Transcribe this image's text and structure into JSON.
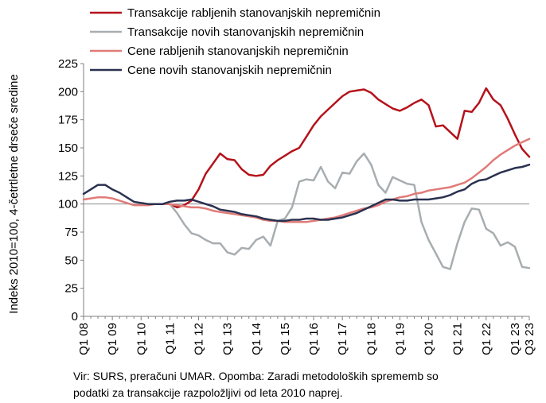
{
  "chart_data": {
    "type": "line",
    "ylabel": "Indeks 2010=100, 4-četrtletne drseče sredine",
    "xlabel": "",
    "ylim": [
      0,
      225
    ],
    "yticks": [
      0,
      25,
      50,
      75,
      100,
      125,
      150,
      175,
      200,
      225
    ],
    "reference_line": 100,
    "grid": false,
    "legend_position": "top",
    "x_tick_labels": [
      "Q1 08",
      "Q1 09",
      "Q1 10",
      "Q1 11",
      "Q1 12",
      "Q1 13",
      "Q1 14",
      "Q1 15",
      "Q1 16",
      "Q1 17",
      "Q1 18",
      "Q1 19",
      "Q1 20",
      "Q1 21",
      "Q1 22",
      "Q1 23",
      "Q3 23"
    ],
    "x_tick_index": [
      0,
      4,
      8,
      12,
      16,
      20,
      24,
      28,
      32,
      36,
      40,
      44,
      48,
      52,
      56,
      60,
      62
    ],
    "x_count": 63,
    "series": [
      {
        "name": "Transakcije rabljenih stanovanjskih nepremičnin",
        "color": "#b5121b",
        "start_index": 12,
        "values": [
          100,
          97,
          99,
          103,
          113,
          127,
          136,
          145,
          140,
          139,
          131,
          126,
          125,
          126,
          134,
          139,
          143,
          147,
          150,
          160,
          170,
          178,
          184,
          190,
          196,
          200,
          201,
          202,
          199,
          193,
          189,
          185,
          183,
          186,
          190,
          193,
          188,
          169,
          170,
          164,
          158,
          183,
          182,
          190,
          203,
          193,
          188,
          176,
          162,
          149,
          142
        ]
      },
      {
        "name": "Transakcije novih stanovanjskih nepremičnin",
        "color": "#a8adb0",
        "start_index": 12,
        "values": [
          100,
          92,
          82,
          74,
          72,
          68,
          65,
          65,
          57,
          55,
          61,
          60,
          68,
          71,
          63,
          85,
          87,
          97,
          120,
          122,
          121,
          133,
          120,
          114,
          128,
          127,
          138,
          145,
          135,
          117,
          110,
          124,
          121,
          118,
          117,
          84,
          68,
          56,
          44,
          42,
          65,
          84,
          96,
          95,
          78,
          74,
          63,
          66,
          62,
          44,
          43
        ]
      },
      {
        "name": "Cene rabljenih stanovanjskih nepremičnin",
        "color": "#e07b78",
        "start_index": 0,
        "values": [
          104,
          105,
          106,
          106,
          105,
          103,
          101,
          99,
          99,
          99,
          100,
          100,
          100,
          99,
          98,
          97,
          97,
          96,
          94,
          93,
          92,
          91,
          90,
          89,
          88,
          86,
          85,
          85,
          84,
          84,
          84,
          84,
          85,
          86,
          87,
          88,
          90,
          92,
          94,
          96,
          97,
          99,
          102,
          104,
          106,
          107,
          109,
          110,
          112,
          113,
          114,
          115,
          117,
          119,
          123,
          128,
          133,
          139,
          144,
          148,
          152,
          155,
          158
        ]
      },
      {
        "name": "Cene novih stanovanjskih nepremičnin",
        "color": "#2a3150",
        "start_index": 0,
        "values": [
          109,
          113,
          117,
          117,
          113,
          110,
          106,
          102,
          101,
          100,
          100,
          100,
          102,
          103,
          103,
          104,
          102,
          100,
          98,
          95,
          94,
          93,
          91,
          90,
          89,
          87,
          86,
          85,
          85,
          86,
          86,
          87,
          87,
          86,
          86,
          87,
          88,
          90,
          92,
          95,
          98,
          101,
          104,
          104,
          103,
          103,
          104,
          104,
          104,
          105,
          106,
          108,
          111,
          113,
          118,
          121,
          122,
          125,
          128,
          130,
          132,
          133,
          135
        ]
      }
    ],
    "note": [
      "Vir: SURS, preračuni UMAR. Opomba: Zaradi metodoloških sprememb so",
      "podatki za transakcije razpoložljivi od leta 2010 naprej."
    ]
  }
}
